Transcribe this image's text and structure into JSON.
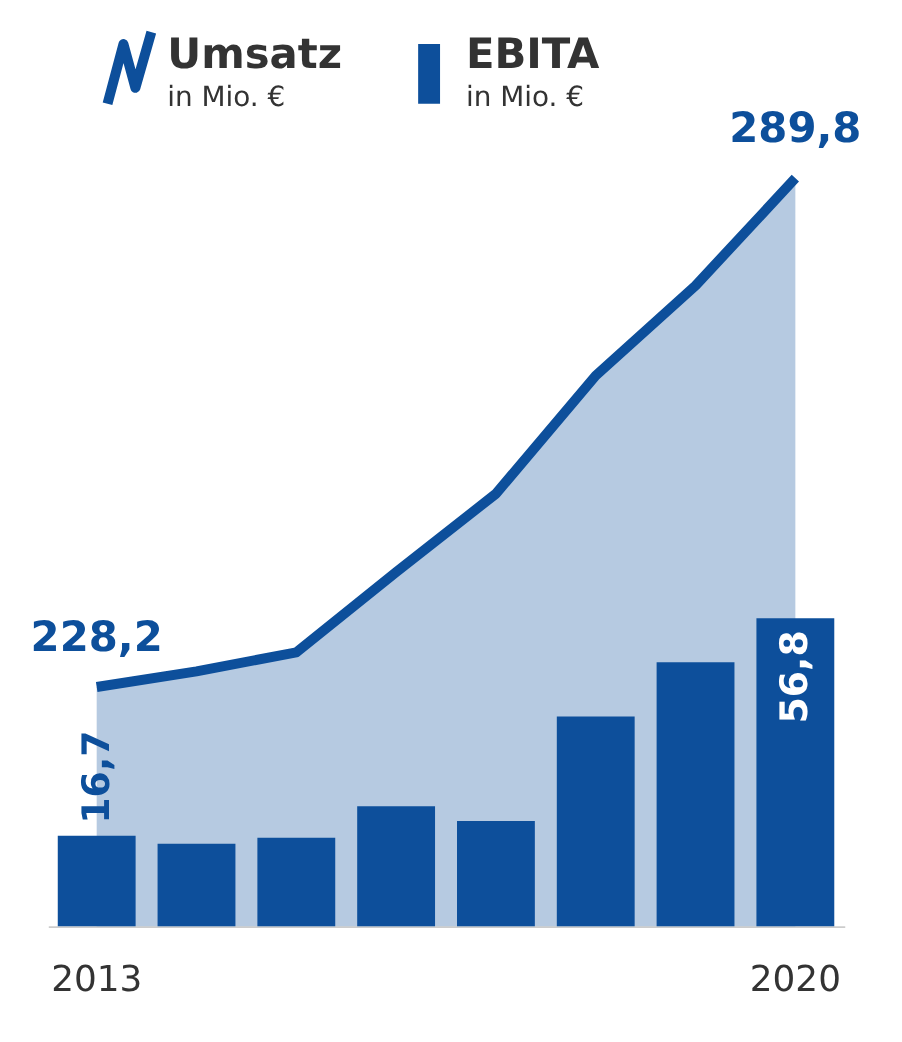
{
  "chart_data": {
    "type": "bar",
    "categories": [
      "2013",
      null,
      null,
      null,
      null,
      null,
      null,
      "2020"
    ],
    "series": [
      {
        "name": "Umsatz",
        "type": "area",
        "color": "#0d4f9b",
        "values": [
          228.2,
          230.1,
          232.4,
          242.1,
          251.6,
          265.9,
          276.8,
          289.8
        ],
        "value_labels": [
          "228,2",
          null,
          null,
          null,
          null,
          null,
          null,
          "289,8"
        ]
      },
      {
        "name": "EBITA",
        "axis": "y2",
        "color": "#0d4f9b",
        "values": [
          16.7,
          15.2,
          16.3,
          22.1,
          19.4,
          38.7,
          48.7,
          56.8
        ],
        "value_labels": [
          "16,7",
          null,
          null,
          null,
          null,
          null,
          null,
          "56,8"
        ]
      }
    ],
    "ylabel": "in Mio. €",
    "y2label": "in Mio. €",
    "legend": "top"
  }
}
